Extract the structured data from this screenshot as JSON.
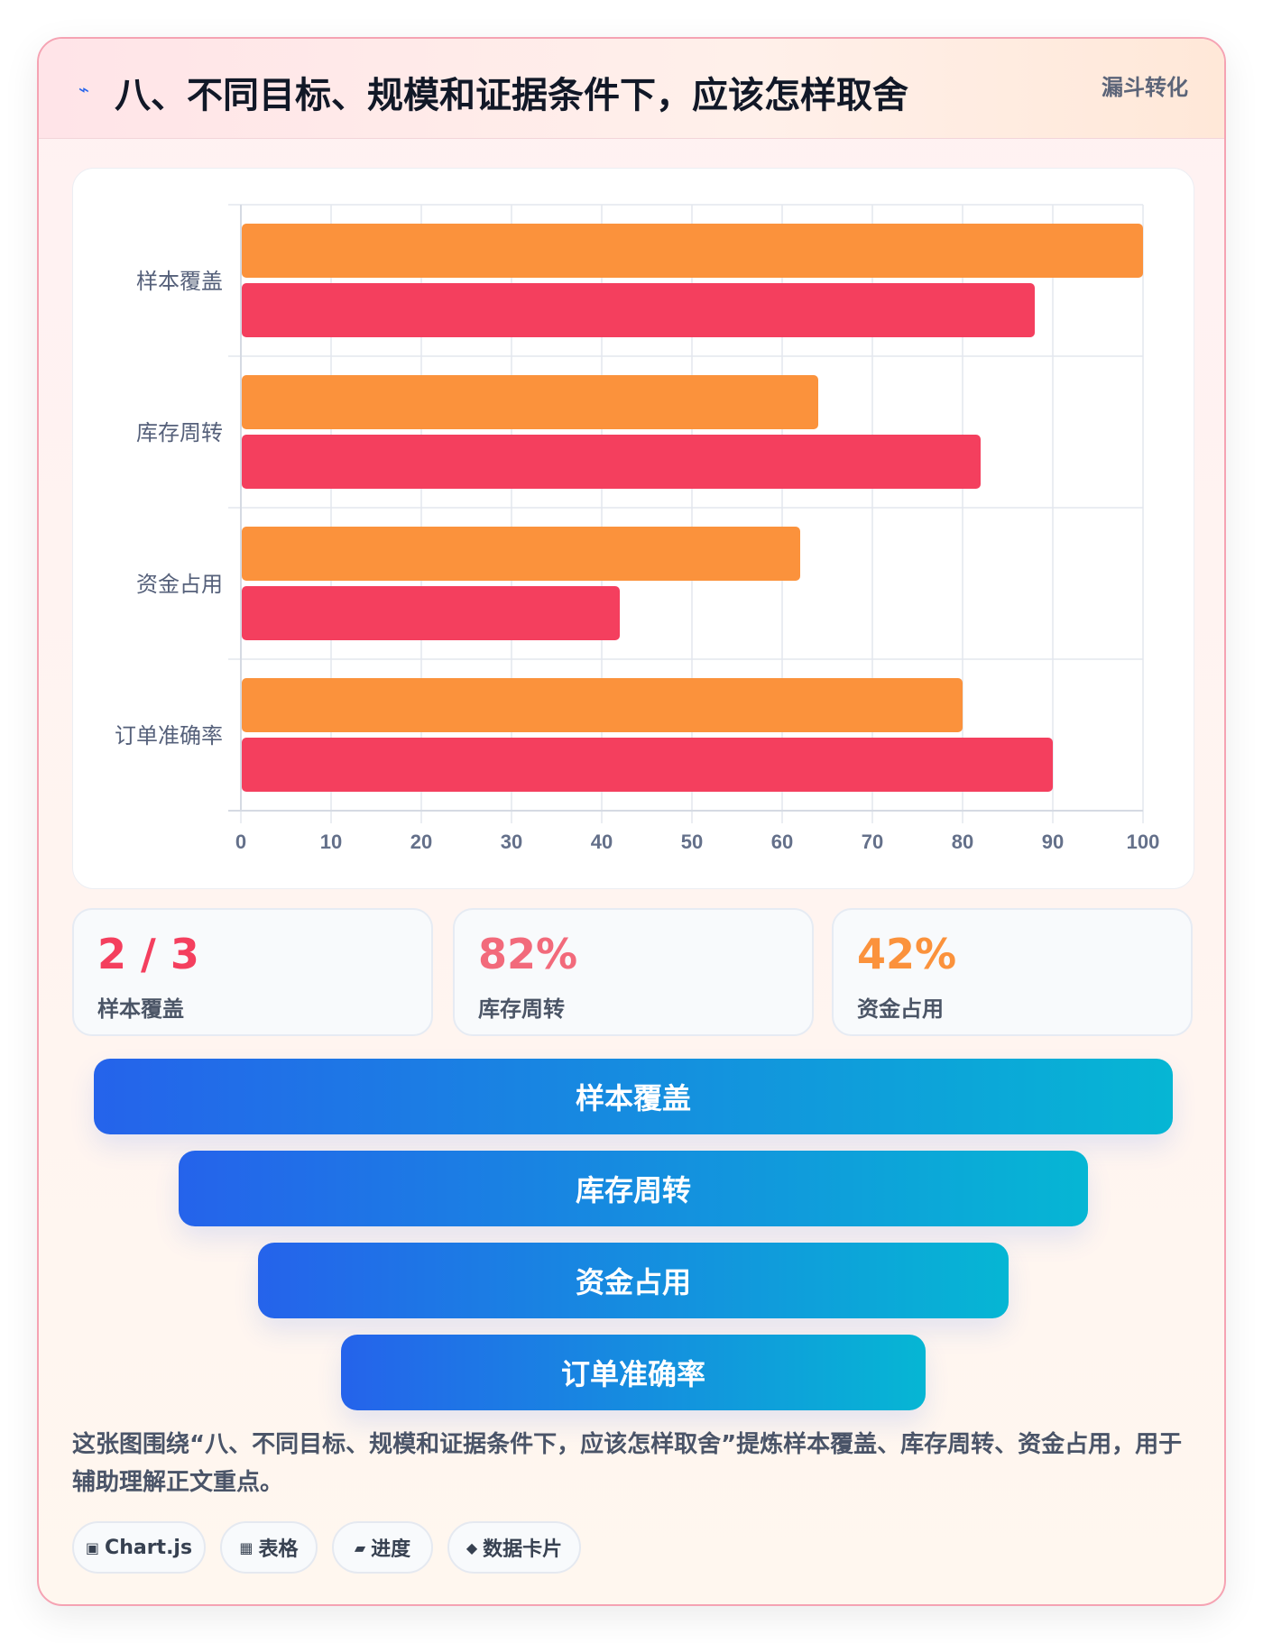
{
  "header": {
    "title": "八、不同目标、规模和证据条件下，应该怎样取舍",
    "tag": "漏斗转化",
    "icon": "lightning-icon"
  },
  "chart_data": {
    "type": "bar",
    "orientation": "horizontal",
    "categories": [
      "样本覆盖",
      "库存周转",
      "资金占用",
      "订单准确率"
    ],
    "series": [
      {
        "color": "#fb923c",
        "values": [
          100,
          64,
          62,
          80
        ]
      },
      {
        "color": "#f43f5e",
        "values": [
          88,
          82,
          42,
          90
        ]
      }
    ],
    "xlim": [
      0,
      100
    ],
    "xticks": [
      "0",
      "10",
      "20",
      "30",
      "40",
      "50",
      "60",
      "70",
      "80",
      "90",
      "100"
    ],
    "grid": true,
    "legend": "none"
  },
  "stats": [
    {
      "value": "2 / 3",
      "label": "样本覆盖",
      "color": "#f43f5e"
    },
    {
      "value": "82%",
      "label": "库存周转",
      "color": "#f26a7b"
    },
    {
      "value": "42%",
      "label": "资金占用",
      "color": "#fb923c"
    }
  ],
  "funnel": [
    "样本覆盖",
    "库存周转",
    "资金占用",
    "订单准确率"
  ],
  "description": "这张图围绕“八、不同目标、规模和证据条件下，应该怎样取舍”提炼样本覆盖、库存周转、资金占用，用于辅助理解正文重点。",
  "pills": [
    {
      "icon": "▣",
      "icon_name": "chart-icon",
      "label": "Chart.js"
    },
    {
      "icon": "▦",
      "icon_name": "table-icon",
      "label": "表格"
    },
    {
      "icon": "▰",
      "icon_name": "progress-icon",
      "label": "进度"
    },
    {
      "icon": "◆",
      "icon_name": "diamond-icon",
      "label": "数据卡片"
    }
  ]
}
